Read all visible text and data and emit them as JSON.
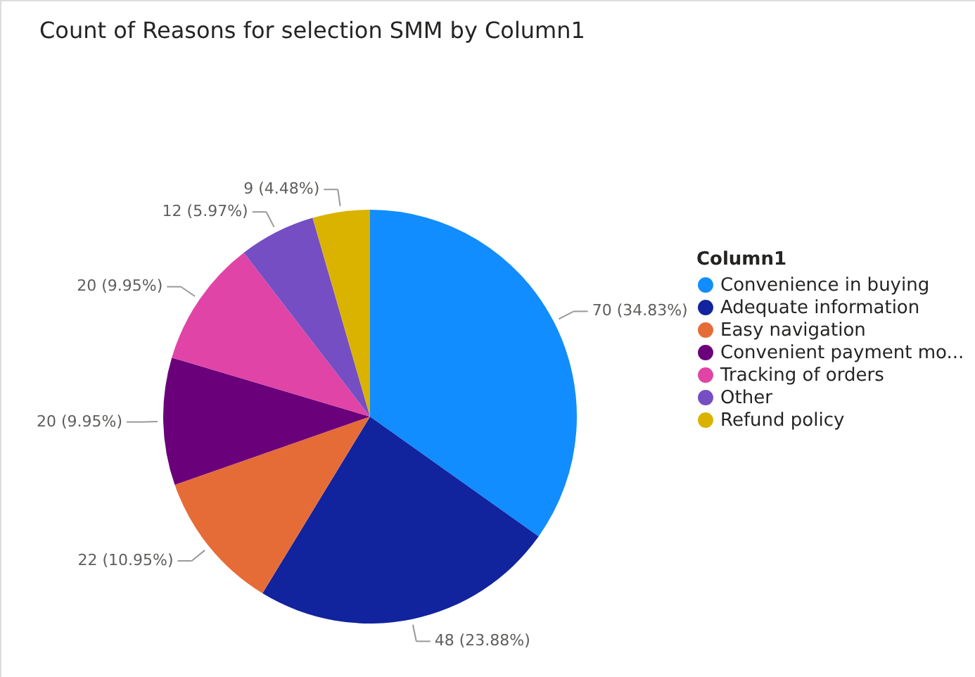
{
  "chart_data": {
    "type": "pie",
    "title": "Count of Reasons for selection SMM by Column1",
    "legend_title": "Column1",
    "legend": "right",
    "categories": [
      "Convenience in buying",
      "Adequate information",
      "Easy navigation",
      "Convenient payment mo...",
      "Tracking of orders",
      "Other",
      "Refund policy"
    ],
    "values": [
      70,
      48,
      22,
      20,
      20,
      12,
      9
    ],
    "colors": [
      "#118dff",
      "#12239e",
      "#e66c37",
      "#6b007b",
      "#e044a7",
      "#744ec2",
      "#d9b300"
    ],
    "value_labels": [
      "70 (34.83%)",
      "48 (23.88%)",
      "22 (10.95%)",
      "20 (9.95%)",
      "20 (9.95%)",
      "12 (5.97%)",
      "9 (4.48%)"
    ]
  }
}
